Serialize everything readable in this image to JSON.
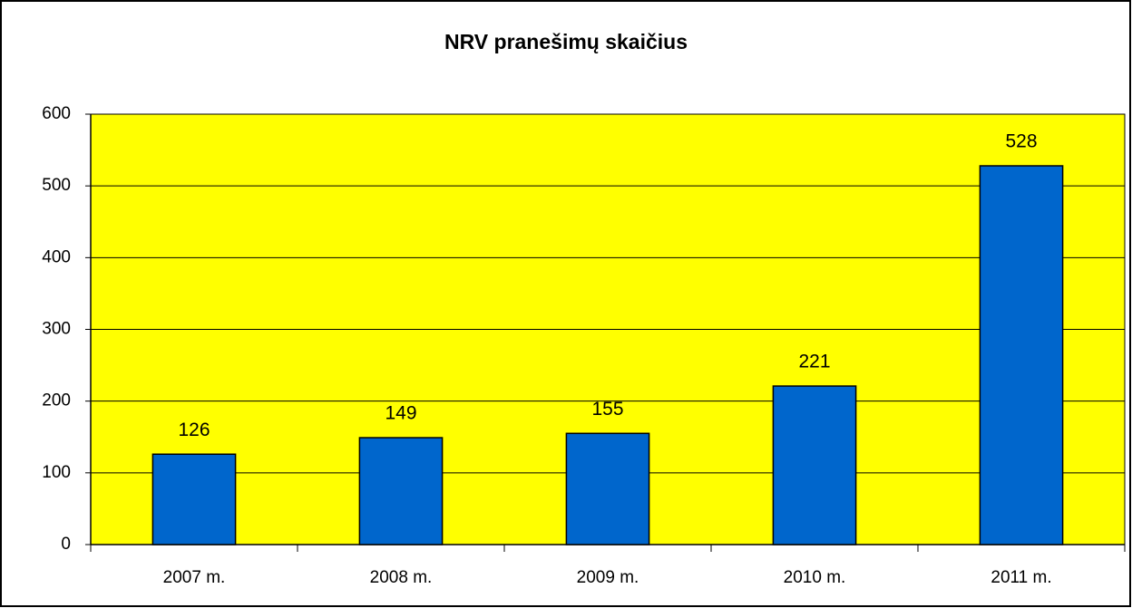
{
  "chart_data": {
    "type": "bar",
    "title": "NRV pranešimų skaičius",
    "categories": [
      "2007 m.",
      "2008 m.",
      "2009 m.",
      "2010 m.",
      "2011 m."
    ],
    "values": [
      126,
      149,
      155,
      221,
      528
    ],
    "color": "#0066cc",
    "plot_background": "#ffff00",
    "ylim": [
      0,
      600
    ],
    "yticks": [
      0,
      100,
      200,
      300,
      400,
      500,
      600
    ],
    "grid": true
  }
}
